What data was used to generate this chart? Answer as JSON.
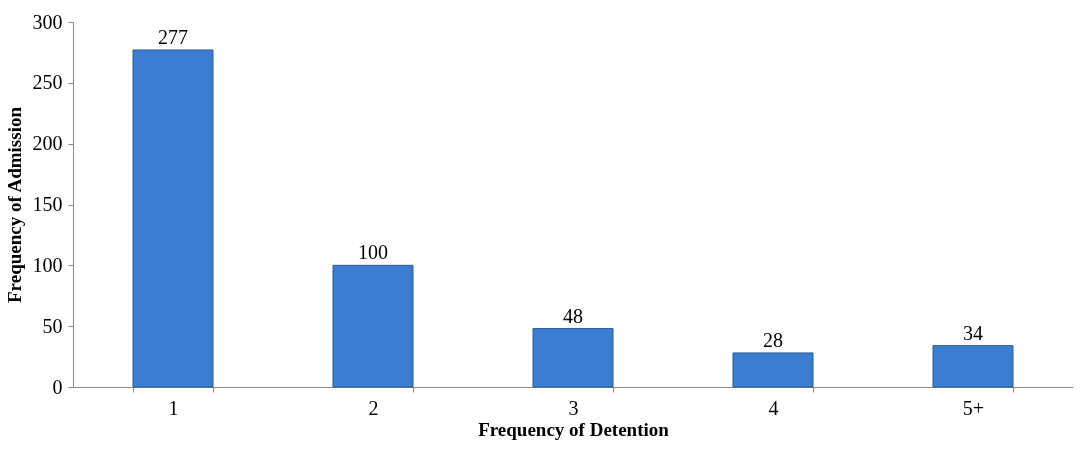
{
  "chart_data": {
    "type": "bar",
    "xlabel": "Frequency of Detention",
    "ylabel": "Frequency of Admission",
    "categories": [
      "1",
      "2",
      "3",
      "4",
      "5+"
    ],
    "values": [
      277,
      100,
      48,
      28,
      34
    ],
    "color": "#3b7dd0",
    "ylim": [
      0,
      300
    ],
    "yticks": [
      0,
      50,
      100,
      150,
      200,
      250,
      300
    ],
    "grid": false,
    "data_labels": true
  }
}
